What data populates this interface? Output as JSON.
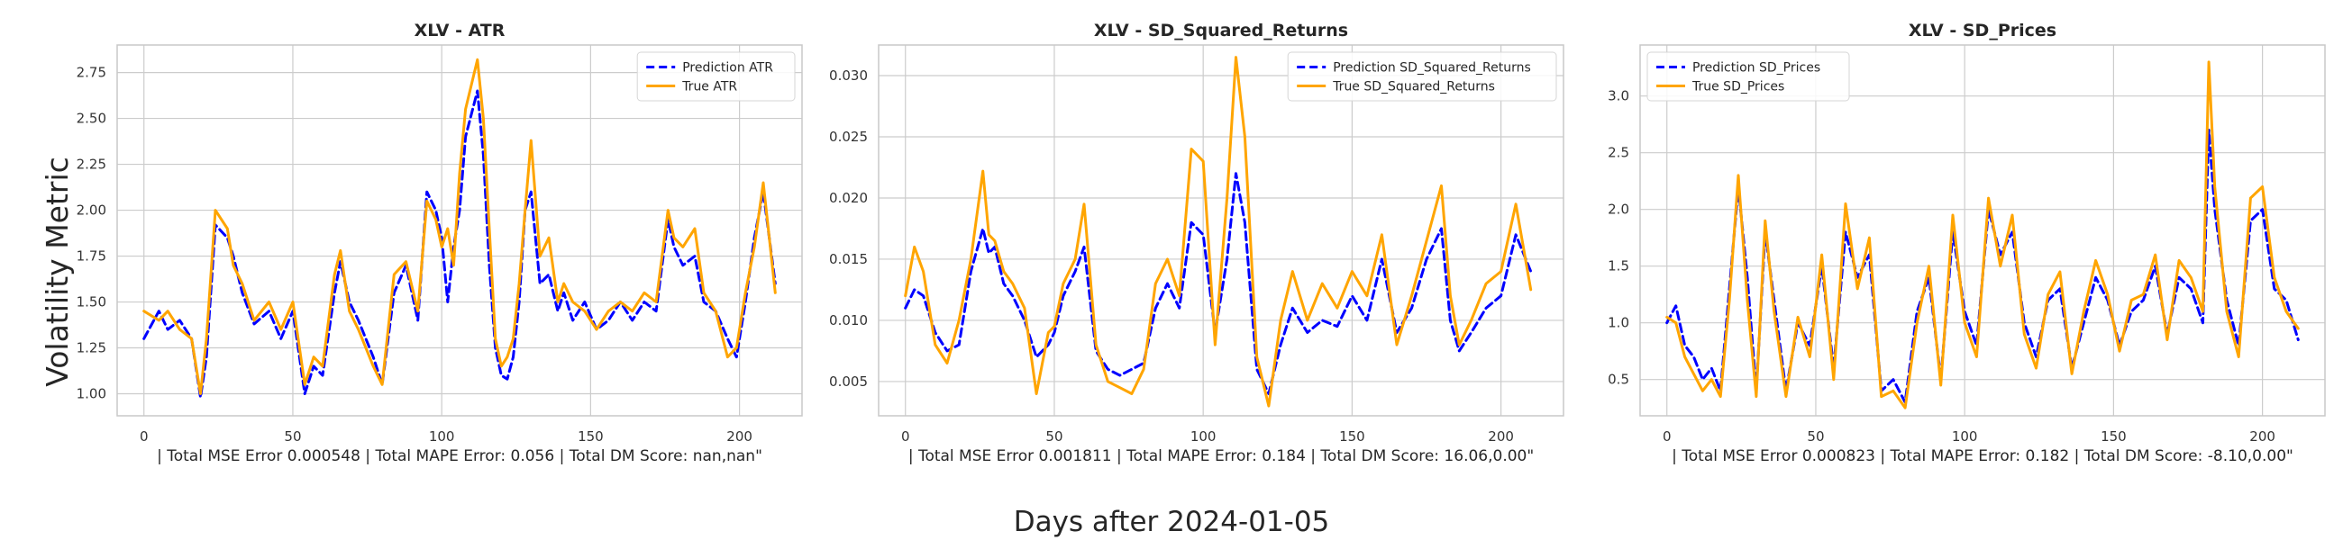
{
  "figure": {
    "ylabel": "Volatility Metric",
    "xlabel": "Days after 2024-01-05"
  },
  "colors": {
    "prediction": "#0000ff",
    "true": "#ffa500",
    "grid": "#cccccc",
    "frame": "#c8c8c8"
  },
  "chart_data": [
    {
      "type": "line",
      "title": "XLV - ATR",
      "xlabel": "| Total MSE Error 0.000548 | Total MAPE Error: 0.056 | Total DM Score: nan,nan\"",
      "xlim": [
        -9,
        221
      ],
      "ylim": [
        0.88,
        2.9
      ],
      "xticks": [
        0,
        50,
        100,
        150,
        200
      ],
      "yticks": [
        1.0,
        1.25,
        1.5,
        1.75,
        2.0,
        2.25,
        2.5,
        2.75
      ],
      "ytick_labels": [
        "1.00",
        "1.25",
        "1.50",
        "1.75",
        "2.00",
        "2.25",
        "2.50",
        "2.75"
      ],
      "legend_position": "upper-right",
      "grid": true,
      "series": [
        {
          "name": "Prediction ATR",
          "style": "dashed",
          "x": [
            0,
            5,
            8,
            12,
            16,
            19,
            21,
            24,
            28,
            30,
            33,
            37,
            42,
            46,
            50,
            54,
            57,
            60,
            64,
            66,
            69,
            72,
            77,
            80,
            84,
            88,
            92,
            95,
            98,
            100,
            102,
            104,
            106,
            108,
            112,
            114,
            116,
            118,
            120,
            122,
            124,
            126,
            128,
            130,
            133,
            136,
            139,
            141,
            144,
            148,
            152,
            156,
            160,
            164,
            168,
            172,
            176,
            178,
            181,
            185,
            188,
            192,
            196,
            199,
            202,
            205,
            208,
            212
          ],
          "y": [
            1.3,
            1.45,
            1.35,
            1.4,
            1.3,
            0.98,
            1.2,
            1.92,
            1.85,
            1.75,
            1.55,
            1.38,
            1.45,
            1.3,
            1.45,
            1.0,
            1.15,
            1.1,
            1.55,
            1.72,
            1.5,
            1.4,
            1.2,
            1.05,
            1.55,
            1.7,
            1.4,
            2.1,
            2.0,
            1.85,
            1.5,
            1.8,
            2.0,
            2.4,
            2.65,
            2.3,
            1.7,
            1.25,
            1.1,
            1.08,
            1.2,
            1.5,
            2.0,
            2.1,
            1.6,
            1.65,
            1.45,
            1.55,
            1.4,
            1.5,
            1.35,
            1.4,
            1.5,
            1.4,
            1.5,
            1.45,
            1.95,
            1.8,
            1.7,
            1.75,
            1.5,
            1.45,
            1.3,
            1.2,
            1.5,
            1.85,
            2.1,
            1.6
          ]
        },
        {
          "name": "True ATR",
          "style": "solid",
          "x": [
            0,
            5,
            8,
            12,
            16,
            19,
            21,
            24,
            28,
            30,
            33,
            37,
            42,
            46,
            50,
            54,
            57,
            60,
            64,
            66,
            69,
            72,
            77,
            80,
            84,
            88,
            92,
            95,
            98,
            100,
            102,
            104,
            106,
            108,
            112,
            114,
            116,
            118,
            120,
            122,
            124,
            126,
            128,
            130,
            133,
            136,
            139,
            141,
            144,
            148,
            152,
            156,
            160,
            164,
            168,
            172,
            176,
            178,
            181,
            185,
            188,
            192,
            196,
            199,
            202,
            205,
            208,
            212
          ],
          "y": [
            1.45,
            1.4,
            1.45,
            1.35,
            1.3,
            1.0,
            1.3,
            2.0,
            1.9,
            1.7,
            1.6,
            1.4,
            1.5,
            1.35,
            1.5,
            1.05,
            1.2,
            1.15,
            1.65,
            1.78,
            1.45,
            1.35,
            1.15,
            1.05,
            1.65,
            1.72,
            1.45,
            2.05,
            1.95,
            1.8,
            1.9,
            1.7,
            2.2,
            2.55,
            2.82,
            2.5,
            1.9,
            1.3,
            1.15,
            1.2,
            1.3,
            1.6,
            2.0,
            2.38,
            1.75,
            1.85,
            1.5,
            1.6,
            1.5,
            1.45,
            1.35,
            1.45,
            1.5,
            1.45,
            1.55,
            1.5,
            2.0,
            1.85,
            1.8,
            1.9,
            1.55,
            1.45,
            1.2,
            1.25,
            1.55,
            1.8,
            2.15,
            1.55
          ]
        }
      ]
    },
    {
      "type": "line",
      "title": "XLV - SD_Squared_Returns",
      "xlabel": "| Total MSE Error 0.001811 | Total MAPE Error: 0.184 | Total DM Score: 16.06,0.00\"",
      "xlim": [
        -9,
        221
      ],
      "ylim": [
        0.0022,
        0.0325
      ],
      "xticks": [
        0,
        50,
        100,
        150,
        200
      ],
      "yticks": [
        0.005,
        0.01,
        0.015,
        0.02,
        0.025,
        0.03
      ],
      "ytick_labels": [
        "0.005",
        "0.010",
        "0.015",
        "0.020",
        "0.025",
        "0.030"
      ],
      "legend_position": "upper-right",
      "grid": true,
      "series": [
        {
          "name": "Prediction SD_Squared_Returns",
          "style": "dashed",
          "x": [
            0,
            3,
            6,
            10,
            14,
            18,
            22,
            26,
            28,
            30,
            33,
            36,
            40,
            44,
            48,
            50,
            53,
            57,
            60,
            64,
            68,
            72,
            76,
            80,
            84,
            88,
            92,
            96,
            100,
            104,
            108,
            111,
            114,
            118,
            122,
            126,
            130,
            135,
            140,
            145,
            150,
            155,
            160,
            165,
            170,
            175,
            180,
            183,
            186,
            190,
            195,
            200,
            205,
            210
          ],
          "y": [
            0.011,
            0.0125,
            0.012,
            0.009,
            0.0075,
            0.008,
            0.014,
            0.0175,
            0.0155,
            0.016,
            0.013,
            0.012,
            0.01,
            0.007,
            0.008,
            0.009,
            0.012,
            0.014,
            0.016,
            0.0075,
            0.006,
            0.0055,
            0.006,
            0.0065,
            0.011,
            0.013,
            0.011,
            0.018,
            0.017,
            0.009,
            0.015,
            0.022,
            0.018,
            0.006,
            0.004,
            0.008,
            0.011,
            0.009,
            0.01,
            0.0095,
            0.012,
            0.01,
            0.015,
            0.009,
            0.011,
            0.015,
            0.0175,
            0.01,
            0.0075,
            0.009,
            0.011,
            0.012,
            0.017,
            0.014
          ]
        },
        {
          "name": "True SD_Squared_Returns",
          "style": "solid",
          "x": [
            0,
            3,
            6,
            10,
            14,
            18,
            22,
            26,
            28,
            30,
            33,
            36,
            40,
            44,
            48,
            50,
            53,
            57,
            60,
            64,
            68,
            72,
            76,
            80,
            84,
            88,
            92,
            96,
            100,
            104,
            108,
            111,
            114,
            118,
            122,
            126,
            130,
            135,
            140,
            145,
            150,
            155,
            160,
            165,
            170,
            175,
            180,
            183,
            186,
            190,
            195,
            200,
            205,
            210
          ],
          "y": [
            0.012,
            0.016,
            0.014,
            0.008,
            0.0065,
            0.01,
            0.015,
            0.0222,
            0.017,
            0.0165,
            0.014,
            0.013,
            0.011,
            0.004,
            0.009,
            0.0095,
            0.013,
            0.015,
            0.0195,
            0.008,
            0.005,
            0.0045,
            0.004,
            0.006,
            0.013,
            0.015,
            0.012,
            0.024,
            0.023,
            0.008,
            0.02,
            0.0315,
            0.025,
            0.007,
            0.003,
            0.01,
            0.014,
            0.01,
            0.013,
            0.011,
            0.014,
            0.012,
            0.017,
            0.008,
            0.012,
            0.0165,
            0.021,
            0.012,
            0.008,
            0.01,
            0.013,
            0.014,
            0.0195,
            0.0125
          ]
        }
      ]
    },
    {
      "type": "line",
      "title": "XLV - SD_Prices",
      "xlabel": "| Total MSE Error 0.000823 | Total MAPE Error: 0.182 | Total DM Score: -8.10,0.00\"",
      "xlim": [
        -9,
        221
      ],
      "ylim": [
        0.18,
        3.45
      ],
      "xticks": [
        0,
        50,
        100,
        150,
        200
      ],
      "yticks": [
        0.5,
        1.0,
        1.5,
        2.0,
        2.5,
        3.0
      ],
      "ytick_labels": [
        "0.5",
        "1.0",
        "1.5",
        "2.0",
        "2.5",
        "3.0"
      ],
      "legend_position": "upper-left",
      "grid": true,
      "series": [
        {
          "name": "Prediction SD_Prices",
          "style": "dashed",
          "x": [
            0,
            3,
            6,
            9,
            12,
            15,
            18,
            21,
            24,
            27,
            30,
            33,
            36,
            40,
            44,
            48,
            52,
            56,
            60,
            64,
            68,
            72,
            76,
            80,
            84,
            88,
            92,
            96,
            100,
            104,
            108,
            112,
            116,
            120,
            124,
            128,
            132,
            136,
            140,
            144,
            148,
            152,
            156,
            160,
            164,
            168,
            172,
            176,
            180,
            182,
            184,
            188,
            192,
            196,
            200,
            204,
            208,
            212
          ],
          "y": [
            1.0,
            1.15,
            0.8,
            0.7,
            0.5,
            0.6,
            0.4,
            1.3,
            2.2,
            1.4,
            0.4,
            1.8,
            1.2,
            0.4,
            1.0,
            0.8,
            1.5,
            0.6,
            1.8,
            1.4,
            1.6,
            0.4,
            0.5,
            0.3,
            1.1,
            1.4,
            0.5,
            1.8,
            1.1,
            0.8,
            2.0,
            1.6,
            1.8,
            1.0,
            0.7,
            1.2,
            1.3,
            0.6,
            1.0,
            1.4,
            1.2,
            0.8,
            1.1,
            1.2,
            1.5,
            0.9,
            1.4,
            1.3,
            1.0,
            2.7,
            2.0,
            1.2,
            0.8,
            1.9,
            2.0,
            1.3,
            1.2,
            0.85
          ]
        },
        {
          "name": "True SD_Prices",
          "style": "solid",
          "x": [
            0,
            3,
            6,
            9,
            12,
            15,
            18,
            21,
            24,
            27,
            30,
            33,
            36,
            40,
            44,
            48,
            52,
            56,
            60,
            64,
            68,
            72,
            76,
            80,
            84,
            88,
            92,
            96,
            100,
            104,
            108,
            112,
            116,
            120,
            124,
            128,
            132,
            136,
            140,
            144,
            148,
            152,
            156,
            160,
            164,
            168,
            172,
            176,
            180,
            182,
            184,
            188,
            192,
            196,
            200,
            204,
            208,
            212
          ],
          "y": [
            1.05,
            1.0,
            0.7,
            0.55,
            0.4,
            0.5,
            0.35,
            1.2,
            2.3,
            1.2,
            0.35,
            1.9,
            1.1,
            0.35,
            1.05,
            0.7,
            1.6,
            0.5,
            2.05,
            1.3,
            1.75,
            0.35,
            0.4,
            0.25,
            1.0,
            1.5,
            0.45,
            1.95,
            1.0,
            0.7,
            2.1,
            1.5,
            1.95,
            0.9,
            0.6,
            1.25,
            1.45,
            0.55,
            1.1,
            1.55,
            1.25,
            0.75,
            1.2,
            1.25,
            1.6,
            0.85,
            1.55,
            1.4,
            1.1,
            3.3,
            2.2,
            1.1,
            0.7,
            2.1,
            2.2,
            1.4,
            1.1,
            0.95
          ]
        }
      ]
    }
  ]
}
